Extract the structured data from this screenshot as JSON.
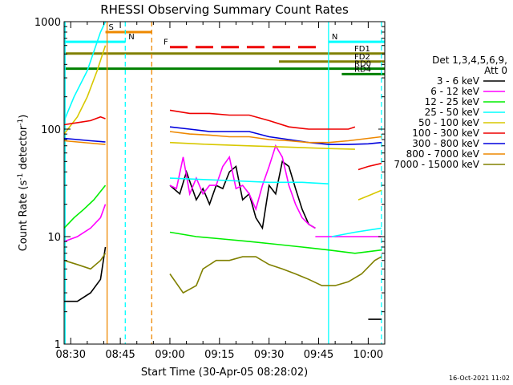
{
  "chart_data": {
    "type": "line",
    "title": "RHESSI Observing Summary Count Rates",
    "xlabel": "Start Time (30-Apr-05 08:28:02)",
    "ylabel": "Count Rate (s⁻¹ detector⁻¹)",
    "ylabel_parts": {
      "main": "Count Rate (s",
      "sup1": "-1",
      "mid": " detector",
      "sup2": "-1",
      "end": ")"
    },
    "y_scale": "log",
    "ylim": [
      1,
      1000
    ],
    "xlim": [
      "08:28",
      "10:05"
    ],
    "x_ticks": [
      "08:30",
      "08:45",
      "09:00",
      "09:15",
      "09:30",
      "09:45",
      "10:00"
    ],
    "y_ticks": [
      "1",
      "10",
      "100",
      "1000"
    ],
    "footer_stamp": "16-Oct-2021 11:02",
    "legend": {
      "placement": "right",
      "header": [
        "Det 1,3,4,5,6,9,",
        "Att 0"
      ],
      "entries": [
        {
          "label": "3 - 6 keV",
          "color": "#000000"
        },
        {
          "label": "6 - 12 keV",
          "color": "#ff00ff"
        },
        {
          "label": "12 - 25 keV",
          "color": "#00ee00"
        },
        {
          "label": "25 - 50 keV",
          "color": "#00ffff"
        },
        {
          "label": "50 - 100 keV",
          "color": "#d8c800"
        },
        {
          "label": "100 - 300 keV",
          "color": "#ee0000"
        },
        {
          "label": "300 - 800 keV",
          "color": "#0000dd"
        },
        {
          "label": "800 - 7000 keV",
          "color": "#ee8800"
        },
        {
          "label": "7000 - 15000 keV",
          "color": "#808000"
        }
      ]
    },
    "flag_bars": [
      {
        "label": "S",
        "color": "#ee8800",
        "y": 800,
        "start": "08:40.5",
        "end": "08:54.5"
      },
      {
        "label": "N",
        "color": "#00ffff",
        "y": 650,
        "start": "08:28",
        "end": "08:46.5"
      },
      {
        "label": "N",
        "color": "#00ffff",
        "y": 650,
        "start": "09:48",
        "end": "10:05"
      },
      {
        "label": "F",
        "color": "#ee0000",
        "y": 580,
        "start": "09:00",
        "end": "09:45",
        "dashed": true
      },
      {
        "label": "FD1",
        "color": "#808000",
        "y": 505,
        "start": "08:28",
        "end": "10:05"
      },
      {
        "label": "FD2",
        "color": "#808000",
        "y": 425,
        "start": "09:33",
        "end": "10:05"
      },
      {
        "label": "RD0",
        "color": "#008000",
        "y": 365,
        "start": "08:28",
        "end": "10:05"
      },
      {
        "label": "RD4",
        "color": "#008000",
        "y": 325,
        "start": "09:52",
        "end": "10:05"
      }
    ],
    "vertical_markers": [
      {
        "t": "08:28.3",
        "color": "#00ffff",
        "style": "solid"
      },
      {
        "t": "08:41",
        "color": "#ee8800",
        "style": "solid"
      },
      {
        "t": "08:46.5",
        "color": "#00ffff",
        "style": "dashed"
      },
      {
        "t": "08:54.5",
        "color": "#ee8800",
        "style": "dashed"
      },
      {
        "t": "09:48",
        "color": "#00ffff",
        "style": "solid"
      },
      {
        "t": "10:04",
        "color": "#00ffff",
        "style": "dashed"
      }
    ],
    "series": [
      {
        "name": "3 - 6 keV",
        "color": "#000000",
        "segments": [
          {
            "t": [
              "08:28",
              "08:32",
              "08:36",
              "08:39",
              "08:40.5"
            ],
            "v": [
              2.5,
              2.5,
              3,
              4,
              8
            ]
          },
          {
            "t": [
              "09:00",
              "09:03",
              "09:05",
              "09:08",
              "09:10",
              "09:12",
              "09:14",
              "09:16",
              "09:18",
              "09:20",
              "09:22",
              "09:24",
              "09:26",
              "09:28",
              "09:30",
              "09:32",
              "09:34",
              "09:36",
              "09:38",
              "09:40",
              "09:42",
              "09:44"
            ],
            "v": [
              30,
              25,
              40,
              22,
              28,
              20,
              30,
              28,
              40,
              45,
              22,
              25,
              15,
              12,
              30,
              25,
              50,
              45,
              28,
              18,
              13,
              12
            ]
          },
          {
            "t": [
              "10:00",
              "10:02",
              "10:04"
            ],
            "v": [
              1.7,
              1.7,
              1.7
            ]
          }
        ]
      },
      {
        "name": "6 - 12 keV",
        "color": "#ff00ff",
        "segments": [
          {
            "t": [
              "08:28",
              "08:32",
              "08:36",
              "08:39",
              "08:40.5"
            ],
            "v": [
              9,
              10,
              12,
              15,
              20
            ]
          },
          {
            "t": [
              "09:00",
              "09:02",
              "09:04",
              "09:06",
              "09:08",
              "09:10",
              "09:12",
              "09:14",
              "09:16",
              "09:18",
              "09:20",
              "09:22",
              "09:24",
              "09:26",
              "09:28",
              "09:30",
              "09:32",
              "09:34",
              "09:36",
              "09:38",
              "09:40",
              "09:42",
              "09:44"
            ],
            "v": [
              30,
              28,
              55,
              25,
              35,
              25,
              30,
              30,
              45,
              55,
              28,
              30,
              25,
              18,
              30,
              45,
              70,
              55,
              30,
              20,
              15,
              13,
              12
            ]
          },
          {
            "t": [
              "09:44",
              "09:48",
              "09:52",
              "09:56",
              "10:00",
              "10:04"
            ],
            "v": [
              10,
              10,
              10,
              10,
              10,
              10
            ]
          }
        ]
      },
      {
        "name": "12 - 25 keV",
        "color": "#00ee00",
        "segments": [
          {
            "t": [
              "08:28",
              "08:31",
              "08:34",
              "08:37",
              "08:40.5"
            ],
            "v": [
              12,
              15,
              18,
              22,
              30
            ]
          },
          {
            "t": [
              "09:00",
              "09:08",
              "09:16",
              "09:24",
              "09:32",
              "09:40",
              "09:48",
              "09:56",
              "10:04"
            ],
            "v": [
              11,
              10,
              9.5,
              9,
              8.5,
              8,
              7.5,
              7,
              7.5
            ]
          }
        ]
      },
      {
        "name": "25 - 50 keV",
        "color": "#00ffff",
        "segments": [
          {
            "t": [
              "08:28",
              "08:31",
              "08:35",
              "08:39",
              "08:40.5"
            ],
            "v": [
              120,
              200,
              350,
              800,
              1000
            ]
          },
          {
            "t": [
              "09:00",
              "09:10",
              "09:20",
              "09:30",
              "09:40",
              "09:48"
            ],
            "v": [
              35,
              34,
              33,
              32,
              32,
              31
            ]
          },
          {
            "t": [
              "09:49",
              "09:56",
              "10:04"
            ],
            "v": [
              10,
              11,
              12
            ]
          }
        ]
      },
      {
        "name": "50 - 100 keV",
        "color": "#d8c800",
        "segments": [
          {
            "t": [
              "08:28",
              "08:32",
              "08:35",
              "08:38",
              "08:40.5"
            ],
            "v": [
              90,
              130,
              200,
              350,
              600
            ]
          },
          {
            "t": [
              "09:00",
              "09:12",
              "09:24",
              "09:36",
              "09:48",
              "09:56"
            ],
            "v": [
              75,
              72,
              70,
              68,
              66,
              65
            ]
          },
          {
            "t": [
              "09:57",
              "10:00",
              "10:04"
            ],
            "v": [
              22,
              24,
              27
            ]
          }
        ]
      },
      {
        "name": "100 - 300 keV",
        "color": "#ee0000",
        "segments": [
          {
            "t": [
              "08:28",
              "08:32",
              "08:36",
              "08:39",
              "08:40.5"
            ],
            "v": [
              110,
              115,
              120,
              130,
              125
            ]
          },
          {
            "t": [
              "09:00",
              "09:06",
              "09:12",
              "09:18",
              "09:24",
              "09:30",
              "09:36",
              "09:42",
              "09:48",
              "09:54",
              "09:56"
            ],
            "v": [
              150,
              140,
              140,
              135,
              135,
              120,
              105,
              100,
              100,
              100,
              105
            ]
          },
          {
            "t": [
              "09:57",
              "10:00",
              "10:04"
            ],
            "v": [
              42,
              45,
              48
            ]
          }
        ]
      },
      {
        "name": "300 - 800 keV",
        "color": "#0000dd",
        "segments": [
          {
            "t": [
              "08:28",
              "08:32",
              "08:36",
              "08:40.5"
            ],
            "v": [
              82,
              80,
              78,
              76
            ]
          },
          {
            "t": [
              "09:00",
              "09:06",
              "09:12",
              "09:18",
              "09:24",
              "09:30",
              "09:36",
              "09:42",
              "09:48",
              "09:54",
              "10:00",
              "10:04"
            ],
            "v": [
              105,
              100,
              95,
              95,
              95,
              85,
              80,
              75,
              72,
              72,
              73,
              75
            ]
          }
        ]
      },
      {
        "name": "800 - 7000 keV",
        "color": "#ee8800",
        "segments": [
          {
            "t": [
              "08:28",
              "08:32",
              "08:36",
              "08:40.5"
            ],
            "v": [
              78,
              76,
              74,
              72
            ]
          },
          {
            "t": [
              "09:00",
              "09:06",
              "09:12",
              "09:18",
              "09:24",
              "09:30",
              "09:36",
              "09:42",
              "09:48",
              "09:54",
              "10:00",
              "10:04"
            ],
            "v": [
              95,
              90,
              88,
              85,
              85,
              80,
              78,
              75,
              75,
              78,
              82,
              85
            ]
          }
        ]
      },
      {
        "name": "7000 - 15000 keV",
        "color": "#808000",
        "segments": [
          {
            "t": [
              "08:28",
              "08:32",
              "08:36",
              "08:39",
              "08:40.5"
            ],
            "v": [
              6,
              5.5,
              5,
              6,
              7
            ]
          },
          {
            "t": [
              "09:00",
              "09:04",
              "09:08",
              "09:10",
              "09:14",
              "09:18",
              "09:22",
              "09:26",
              "09:30",
              "09:34",
              "09:38",
              "09:42",
              "09:46",
              "09:50",
              "09:54",
              "09:58",
              "10:02",
              "10:04"
            ],
            "v": [
              4.5,
              3,
              3.5,
              5,
              6,
              6,
              6.5,
              6.5,
              5.5,
              5,
              4.5,
              4,
              3.5,
              3.5,
              3.8,
              4.5,
              6,
              6.5
            ]
          }
        ]
      }
    ]
  }
}
